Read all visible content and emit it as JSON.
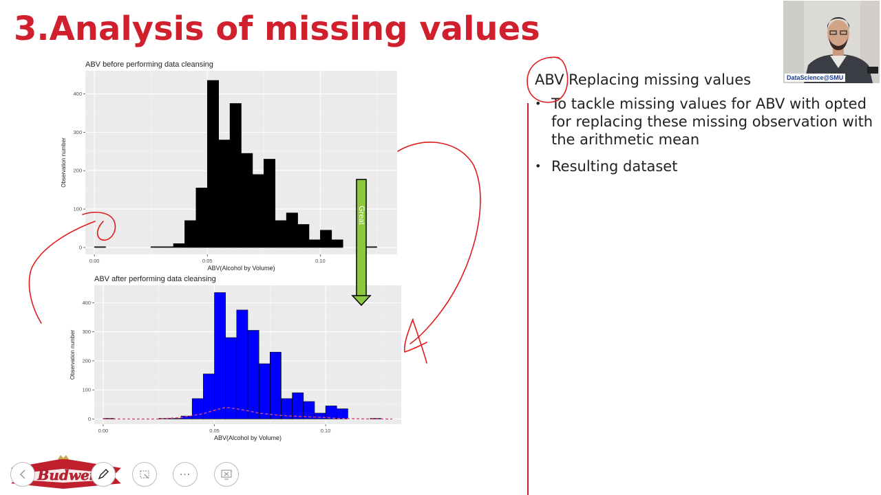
{
  "slide": {
    "title": "3.Analysis of missing values",
    "right_heading_abbr": "ABV",
    "right_heading_rest": " Replacing missing values",
    "bullets": [
      "To tackle missing values for ABV with opted for replacing these missing observation with the arithmetic mean",
      "Resulting dataset"
    ],
    "arrow_label": "Great",
    "webcam_label": "DataScience@SMU",
    "logo_text": "Budwei"
  },
  "toolbar": {
    "icons": [
      "prev-icon",
      "pen-icon",
      "laser-icon",
      "more-icon",
      "screen-icon"
    ],
    "more_label": "⋯"
  },
  "chart_data": [
    {
      "type": "bar",
      "title": "ABV before performing data cleansing",
      "xlabel": "ABV(Alcohol by Volume)",
      "ylabel": "Observation number",
      "xlim": [
        -0.004,
        0.134
      ],
      "ylim": [
        -18,
        460
      ],
      "xticks": [
        0.0,
        0.05,
        0.1
      ],
      "xtick_labels": [
        "0.00",
        "0.05",
        "0.10"
      ],
      "yticks": [
        0,
        100,
        200,
        300,
        400
      ],
      "ytick_labels": [
        "0",
        "100",
        "200",
        "300",
        "400"
      ],
      "bin_width": 0.005,
      "bins_start": [
        0.0,
        0.025,
        0.03,
        0.035,
        0.04,
        0.045,
        0.05,
        0.055,
        0.06,
        0.065,
        0.07,
        0.075,
        0.08,
        0.085,
        0.09,
        0.095,
        0.1,
        0.105,
        0.12
      ],
      "values": [
        2,
        2,
        2,
        10,
        70,
        155,
        435,
        280,
        375,
        245,
        190,
        230,
        70,
        90,
        60,
        20,
        45,
        20,
        2
      ],
      "fill": "#000000",
      "grid": true,
      "legend": "none"
    },
    {
      "type": "bar",
      "title": "ABV after performing data cleansing",
      "xlabel": "ABV(Alcohol by Volume)",
      "ylabel": "Observation number",
      "xlim": [
        -0.004,
        0.134
      ],
      "ylim": [
        -18,
        460
      ],
      "xticks": [
        0.0,
        0.05,
        0.1
      ],
      "xtick_labels": [
        "0.00",
        "0.05",
        "0.10"
      ],
      "yticks": [
        0,
        100,
        200,
        300,
        400
      ],
      "ytick_labels": [
        "0",
        "100",
        "200",
        "300",
        "400"
      ],
      "bin_width": 0.005,
      "bins_start": [
        0.0,
        0.025,
        0.03,
        0.035,
        0.04,
        0.045,
        0.05,
        0.055,
        0.06,
        0.065,
        0.07,
        0.075,
        0.08,
        0.085,
        0.09,
        0.095,
        0.1,
        0.105,
        0.12
      ],
      "values": [
        2,
        2,
        2,
        10,
        70,
        155,
        435,
        280,
        375,
        305,
        190,
        230,
        70,
        90,
        60,
        20,
        45,
        35,
        2
      ],
      "fill": "#0000ff",
      "density_x": [
        0.0,
        0.025,
        0.035,
        0.045,
        0.05,
        0.055,
        0.06,
        0.065,
        0.07,
        0.08,
        0.09,
        0.1,
        0.105,
        0.12,
        0.13
      ],
      "density_y": [
        0,
        0,
        5,
        18,
        30,
        40,
        35,
        28,
        20,
        12,
        8,
        5,
        2,
        0,
        0
      ],
      "density_color": "#e0457a",
      "grid": true,
      "legend": "none"
    }
  ]
}
